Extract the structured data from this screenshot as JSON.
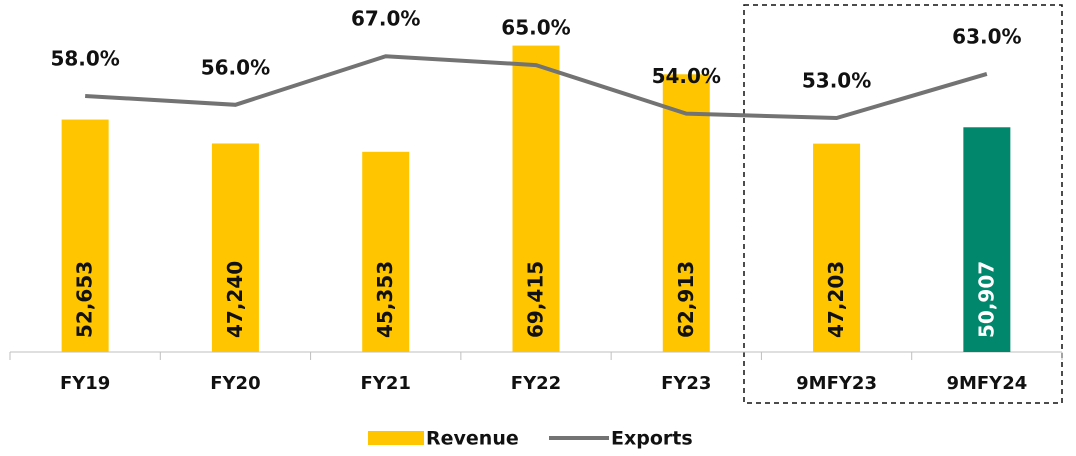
{
  "chart_data": {
    "type": "bar_line",
    "categories": [
      "FY19",
      "FY20",
      "FY21",
      "FY22",
      "FY23",
      "9MFY23",
      "9MFY24"
    ],
    "series": [
      {
        "name": "Revenue",
        "type": "bar",
        "color": "#FFC600",
        "colors": [
          "#FFC600",
          "#FFC600",
          "#FFC600",
          "#FFC600",
          "#FFC600",
          "#FFC600",
          "#00876C"
        ],
        "values": [
          52653,
          47240,
          45353,
          69415,
          62913,
          47203,
          50907
        ],
        "value_labels": [
          "52,653",
          "47,240",
          "45,353",
          "69,415",
          "62,913",
          "47,203",
          "50,907"
        ]
      },
      {
        "name": "Exports",
        "type": "line",
        "axis": "y2",
        "color": "#737373",
        "values": [
          58,
          56,
          67,
          65,
          54,
          53,
          63
        ],
        "value_labels": [
          "58.0%",
          "56.0%",
          "67.0%",
          "65.0%",
          "54.0%",
          "53.0%",
          "63.0%"
        ]
      }
    ],
    "ylim": [
      0,
      70000
    ],
    "y2lim": [
      0,
      70
    ],
    "legend": "bottom"
  }
}
